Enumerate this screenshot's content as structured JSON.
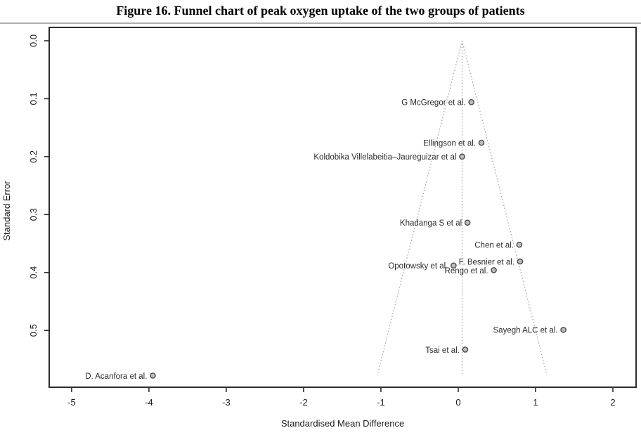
{
  "title": "Figure 16. Funnel chart of peak oxygen uptake of the two groups of patients",
  "chart_data": {
    "type": "scatter",
    "subtype": "funnel-plot",
    "title": "Figure 16. Funnel chart of peak oxygen uptake of the two groups of patients",
    "xlabel": "Standardised Mean Difference",
    "ylabel": "Standard Error",
    "xlim": [
      -5.29,
      2.3
    ],
    "ylim_top_to_bottom": [
      -0.023,
      0.598
    ],
    "x_tick_labels": [
      "-5",
      "-4",
      "-3",
      "-2",
      "-1",
      "0",
      "1",
      "2"
    ],
    "x_tick_values": [
      -5,
      -4,
      -3,
      -2,
      -1,
      0,
      1,
      2
    ],
    "y_tick_labels": [
      "0.0",
      "0.1",
      "0.2",
      "0.3",
      "0.4",
      "0.5"
    ],
    "y_tick_values": [
      0.0,
      0.1,
      0.2,
      0.3,
      0.4,
      0.5
    ],
    "grid": false,
    "legend": "none",
    "funnel": {
      "center_smd": 0.05,
      "slope_multiplier": 1.9,
      "se_apex": 0.0,
      "se_bottom": 0.577,
      "line_style": "dotted",
      "line_color": "#969696",
      "has_center_line": true
    },
    "points": [
      {
        "label": "G McGregor et al.",
        "smd": 0.17,
        "se": 0.106
      },
      {
        "label": "Ellingson et al.",
        "smd": 0.3,
        "se": 0.176
      },
      {
        "label": "Koldobika Villelabeitia–Jaureguizar et al",
        "smd": 0.05,
        "se": 0.2
      },
      {
        "label": "Khadanga S et al",
        "smd": 0.12,
        "se": 0.314
      },
      {
        "label": "Chen et al.",
        "smd": 0.79,
        "se": 0.352
      },
      {
        "label": "F. Besnier et al.",
        "smd": 0.8,
        "se": 0.381
      },
      {
        "label": "Opotowsky et al.",
        "smd": -0.06,
        "se": 0.388
      },
      {
        "label": "Rengo et al.",
        "smd": 0.46,
        "se": 0.396
      },
      {
        "label": "Sayegh ALC et al.",
        "smd": 1.36,
        "se": 0.499
      },
      {
        "label": "Tsai et al.",
        "smd": 0.09,
        "se": 0.533
      },
      {
        "label": "D. Acanfora et al.",
        "smd": -3.95,
        "se": 0.578
      }
    ],
    "point_style": {
      "fill": "#bdbdbd",
      "stroke": "#4a4a4a"
    },
    "colors": {
      "plot_border": "#2e2e2e",
      "tick_text": "#1a1a1a",
      "label_text": "#2b2b2b",
      "title_rule": "#adadad",
      "background": "#ffffff"
    }
  }
}
